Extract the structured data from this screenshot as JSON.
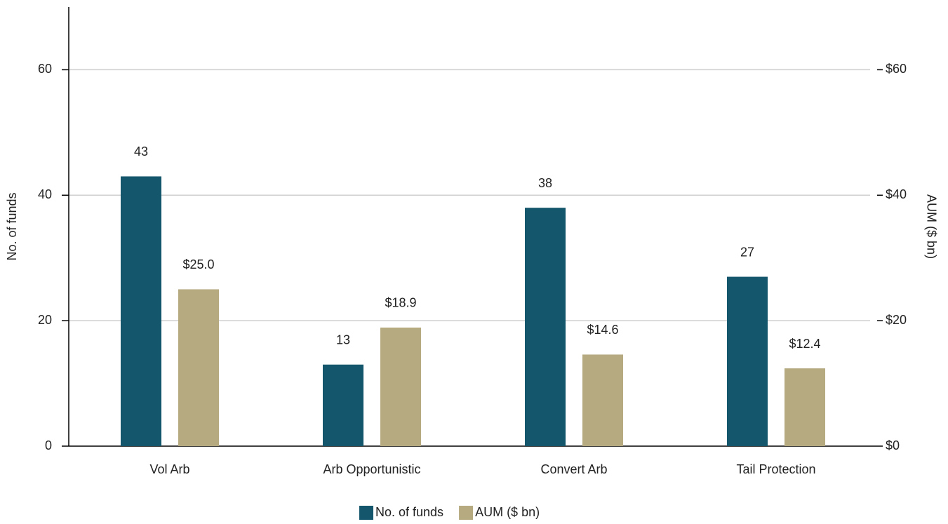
{
  "chart_data": {
    "type": "bar",
    "categories": [
      "Vol Arb",
      "Arb Opportunistic",
      "Convert Arb",
      "Tail Protection"
    ],
    "series": [
      {
        "name": "No. of funds",
        "color": "#14566b",
        "values": [
          43,
          13,
          38,
          27
        ]
      },
      {
        "name": "AUM ($ bn)",
        "color": "#b5aa80",
        "axis": "y2",
        "values": [
          25.0,
          18.9,
          14.6,
          12.4
        ],
        "value_labels": [
          "$25.0",
          "$18.9",
          "$14.6",
          "$12.4"
        ]
      }
    ],
    "y_label": "No. of funds",
    "y2_label": "AUM ($ bn)",
    "ylim": [
      0,
      70
    ],
    "yticks": [
      0,
      20,
      40,
      60
    ],
    "y2lim": [
      0,
      70
    ],
    "y2ticks": [
      {
        "value": 0,
        "label": "$0"
      },
      {
        "value": 20,
        "label": "$20"
      },
      {
        "value": 40,
        "label": "$40"
      },
      {
        "value": 60,
        "label": "$60"
      }
    ],
    "grid": true,
    "legend": "bottom"
  }
}
